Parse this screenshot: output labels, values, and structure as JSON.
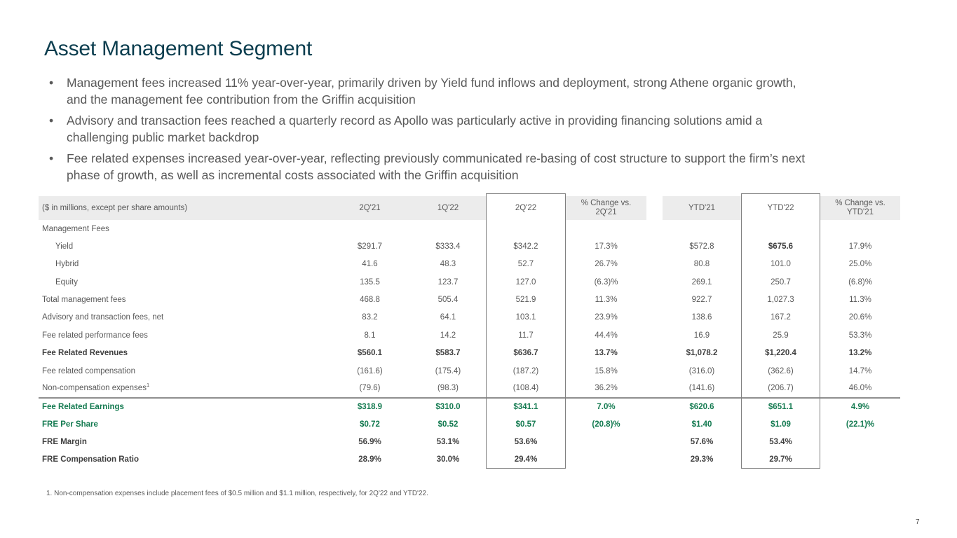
{
  "colors": {
    "title_teal": "#0c3e4f",
    "highlight_green": "#137a50",
    "header_gray": "#ececec"
  },
  "slide": {
    "title": "Asset Management Segment",
    "page_number": "7",
    "bullets": [
      "Management fees increased 11% year-over-year, primarily driven by Yield fund inflows and deployment, strong Athene organic growth,\nand the management fee contribution from the Griffin acquisition",
      "Advisory and transaction fees reached a quarterly record as Apollo was particularly active in providing financing solutions amid a\nchallenging public market backdrop",
      "Fee related expenses increased year-over-year, reflecting previously communicated re-basing of cost structure to support the firm’s next\nphase of growth, as well as incremental costs associated with the Griffin acquisition"
    ],
    "footnote": "1. Non-compensation expenses include placement fees of $0.5 million and $1.1 million, respectively, for 2Q'22 and YTD'22."
  },
  "table": {
    "corner_label": "($ in millions, except per share amounts)",
    "columns": [
      "2Q'21",
      "1Q'22",
      "2Q'22",
      "% Change vs.\n2Q'21",
      "YTD'21",
      "YTD'22",
      "% Change vs.\nYTD'21"
    ],
    "rows": [
      {
        "label": "Management Fees",
        "style": "normal",
        "indent": false,
        "values": [
          "",
          "",
          "",
          "",
          "",
          "",
          ""
        ]
      },
      {
        "label": "Yield",
        "style": "normal",
        "indent": true,
        "bold_cols": [
          5
        ],
        "values": [
          "$291.7",
          "$333.4",
          "$342.2",
          "17.3%",
          "$572.8",
          "$675.6",
          "17.9%"
        ]
      },
      {
        "label": "Hybrid",
        "style": "normal",
        "indent": true,
        "values": [
          "41.6",
          "48.3",
          "52.7",
          "26.7%",
          "80.8",
          "101.0",
          "25.0%"
        ]
      },
      {
        "label": "Equity",
        "style": "normal",
        "indent": true,
        "values": [
          "135.5",
          "123.7",
          "127.0",
          "(6.3)%",
          "269.1",
          "250.7",
          "(6.8)%"
        ]
      },
      {
        "label": "Total management fees",
        "style": "normal",
        "indent": false,
        "values": [
          "468.8",
          "505.4",
          "521.9",
          "11.3%",
          "922.7",
          "1,027.3",
          "11.3%"
        ]
      },
      {
        "label": "Advisory and transaction fees, net",
        "style": "normal",
        "indent": false,
        "values": [
          "83.2",
          "64.1",
          "103.1",
          "23.9%",
          "138.6",
          "167.2",
          "20.6%"
        ]
      },
      {
        "label": "Fee related performance fees",
        "style": "normal",
        "indent": false,
        "values": [
          "8.1",
          "14.2",
          "11.7",
          "44.4%",
          "16.9",
          "25.9",
          "53.3%"
        ]
      },
      {
        "label": "Fee Related Revenues",
        "style": "bold",
        "indent": false,
        "values": [
          "$560.1",
          "$583.7",
          "$636.7",
          "13.7%",
          "$1,078.2",
          "$1,220.4",
          "13.2%"
        ]
      },
      {
        "label": "Fee related compensation",
        "style": "normal",
        "indent": false,
        "values": [
          "(161.6)",
          "(175.4)",
          "(187.2)",
          "15.8%",
          "(316.0)",
          "(362.6)",
          "14.7%"
        ]
      },
      {
        "label": "Non-compensation expenses",
        "sup": "1",
        "style": "normal",
        "indent": false,
        "values": [
          "(79.6)",
          "(98.3)",
          "(108.4)",
          "36.2%",
          "(141.6)",
          "(206.7)",
          "46.0%"
        ]
      },
      {
        "label": "Fee Related Earnings",
        "style": "green",
        "topline": true,
        "indent": false,
        "values": [
          "$318.9",
          "$310.0",
          "$341.1",
          "7.0%",
          "$620.6",
          "$651.1",
          "4.9%"
        ]
      },
      {
        "label": "FRE Per Share",
        "style": "green",
        "indent": false,
        "values": [
          "$0.72",
          "$0.52",
          "$0.57",
          "(20.8)%",
          "$1.40",
          "$1.09",
          "(22.1)%"
        ]
      },
      {
        "label": "FRE Margin",
        "style": "bold",
        "indent": false,
        "values": [
          "56.9%",
          "53.1%",
          "53.6%",
          "",
          "57.6%",
          "53.4%",
          ""
        ]
      },
      {
        "label": "FRE Compensation Ratio",
        "style": "bold",
        "indent": false,
        "values": [
          "28.9%",
          "30.0%",
          "29.4%",
          "",
          "29.3%",
          "29.7%",
          ""
        ]
      }
    ]
  }
}
